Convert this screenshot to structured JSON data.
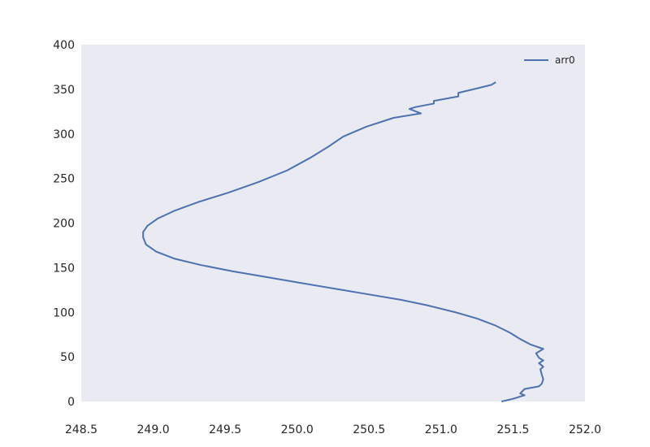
{
  "chart_data": {
    "type": "line",
    "title": "",
    "xlabel": "",
    "ylabel": "",
    "xlim": [
      248.5,
      252.0
    ],
    "ylim": [
      0,
      400
    ],
    "xticks": [
      "248.5",
      "249.0",
      "249.5",
      "250.0",
      "250.5",
      "251.0",
      "251.5",
      "252.0"
    ],
    "yticks": [
      "0",
      "50",
      "100",
      "150",
      "200",
      "250",
      "300",
      "350",
      "400"
    ],
    "grid": false,
    "legend": {
      "position": "top-right",
      "entries": [
        "arr0"
      ]
    },
    "colors": {
      "background": "#EAEAF2",
      "line": "#4C72B0",
      "tick_text": "#262626"
    },
    "series": [
      {
        "name": "arr0",
        "points": [
          [
            251.42,
            0
          ],
          [
            251.5,
            3
          ],
          [
            251.58,
            7
          ],
          [
            251.55,
            9
          ],
          [
            251.58,
            14
          ],
          [
            251.68,
            17
          ],
          [
            251.7,
            20
          ],
          [
            251.71,
            25
          ],
          [
            251.7,
            30
          ],
          [
            251.69,
            36
          ],
          [
            251.71,
            39
          ],
          [
            251.68,
            43
          ],
          [
            251.71,
            46
          ],
          [
            251.68,
            49
          ],
          [
            251.66,
            54
          ],
          [
            251.71,
            59
          ],
          [
            251.62,
            64
          ],
          [
            251.55,
            70
          ],
          [
            251.48,
            77
          ],
          [
            251.38,
            85
          ],
          [
            251.25,
            93
          ],
          [
            251.1,
            100
          ],
          [
            250.9,
            108
          ],
          [
            250.72,
            114
          ],
          [
            250.5,
            120
          ],
          [
            250.28,
            126
          ],
          [
            250.02,
            133
          ],
          [
            249.77,
            140
          ],
          [
            249.55,
            146
          ],
          [
            249.33,
            153
          ],
          [
            249.15,
            160
          ],
          [
            249.02,
            168
          ],
          [
            248.95,
            176
          ],
          [
            248.93,
            184
          ],
          [
            248.93,
            190
          ],
          [
            248.96,
            197
          ],
          [
            249.03,
            205
          ],
          [
            249.15,
            214
          ],
          [
            249.32,
            224
          ],
          [
            249.52,
            234
          ],
          [
            249.73,
            246
          ],
          [
            249.93,
            259
          ],
          [
            250.1,
            274
          ],
          [
            250.22,
            286
          ],
          [
            250.32,
            297
          ],
          [
            250.48,
            308
          ],
          [
            250.67,
            318
          ],
          [
            250.86,
            323
          ],
          [
            250.78,
            328
          ],
          [
            250.82,
            330
          ],
          [
            250.95,
            334
          ],
          [
            250.95,
            337
          ],
          [
            251.12,
            342
          ],
          [
            251.12,
            346
          ],
          [
            251.25,
            351
          ],
          [
            251.35,
            355
          ],
          [
            251.38,
            358
          ]
        ]
      }
    ]
  }
}
